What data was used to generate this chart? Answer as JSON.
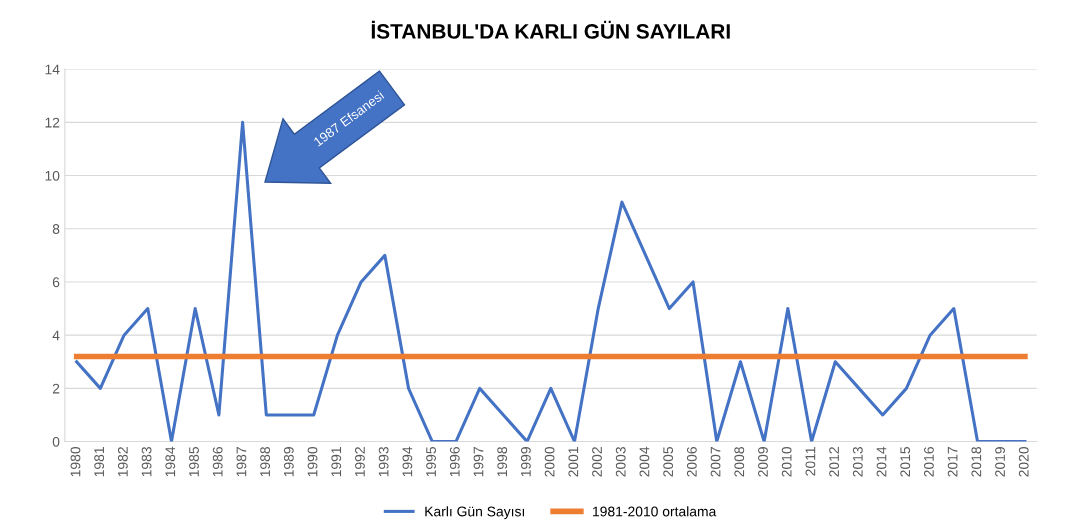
{
  "chart_data": {
    "type": "line",
    "title": "İSTANBUL'DA KARLI GÜN SAYILARI",
    "categories": [
      "1980",
      "1981",
      "1982",
      "1983",
      "1984",
      "1985",
      "1986",
      "1987",
      "1988",
      "1989",
      "1990",
      "1991",
      "1992",
      "1993",
      "1994",
      "1995",
      "1996",
      "1997",
      "1998",
      "1999",
      "2000",
      "2001",
      "2002",
      "2003",
      "2004",
      "2005",
      "2006",
      "2007",
      "2008",
      "2009",
      "2010",
      "2011",
      "2012",
      "2013",
      "2014",
      "2015",
      "2016",
      "2017",
      "2018",
      "2019",
      "2020"
    ],
    "series": [
      {
        "name": "Karlı Gün Sayısı",
        "color": "#4472c4",
        "values": [
          3,
          2,
          4,
          5,
          0,
          5,
          1,
          12,
          1,
          1,
          1,
          4,
          6,
          7,
          2,
          0,
          0,
          2,
          1,
          0,
          2,
          0,
          5,
          9,
          7,
          5,
          6,
          0,
          3,
          0,
          5,
          0,
          3,
          2,
          1,
          2,
          4,
          5,
          0,
          0,
          0
        ]
      },
      {
        "name": "1981-2010 ortalama",
        "color": "#ed7d31",
        "values": [
          3.2,
          3.2,
          3.2,
          3.2,
          3.2,
          3.2,
          3.2,
          3.2,
          3.2,
          3.2,
          3.2,
          3.2,
          3.2,
          3.2,
          3.2,
          3.2,
          3.2,
          3.2,
          3.2,
          3.2,
          3.2,
          3.2,
          3.2,
          3.2,
          3.2,
          3.2,
          3.2,
          3.2,
          3.2,
          3.2,
          3.2,
          3.2,
          3.2,
          3.2,
          3.2,
          3.2,
          3.2,
          3.2,
          3.2,
          3.2,
          3.2
        ]
      }
    ],
    "annotations": [
      "1987 Efsanesi"
    ],
    "ylim": [
      0,
      14
    ],
    "yticks": [
      0,
      2,
      4,
      6,
      8,
      10,
      12,
      14
    ],
    "grid": "y",
    "legend": "bottom",
    "marker": "none",
    "line_style": "solid"
  }
}
